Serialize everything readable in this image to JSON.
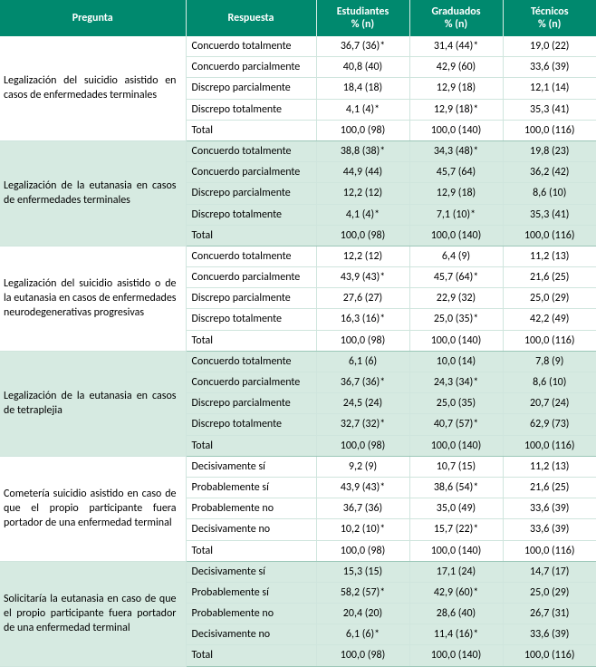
{
  "headers": {
    "pregunta": "Pregunta",
    "respuesta": "Respuesta",
    "estudiantes": "Estudiantes",
    "graduados": "Graduados",
    "tecnicos": "Técnicos",
    "pct_n": "% (n)"
  },
  "questions": [
    {
      "shaded": false,
      "pregunta": "Legalización del suicidio asistido en casos de enfermedades terminales",
      "rows": [
        {
          "respuesta": "Concuerdo totalmente",
          "estudiantes": "36,7 (36)*",
          "graduados": "31,4 (44)*",
          "tecnicos": "19,0 (22)"
        },
        {
          "respuesta": "Concuerdo parcialmente",
          "estudiantes": "40,8 (40)",
          "graduados": "42,9 (60)",
          "tecnicos": "33,6 (39)"
        },
        {
          "respuesta": "Discrepo parcialmente",
          "estudiantes": "18,4 (18)",
          "graduados": "12,9 (18)",
          "tecnicos": "12,1 (14)"
        },
        {
          "respuesta": "Discrepo totalmente",
          "estudiantes": "4,1 (4)*",
          "graduados": "12,9 (18)*",
          "tecnicos": "35,3 (41)"
        },
        {
          "respuesta": "Total",
          "estudiantes": "100,0 (98)",
          "graduados": "100,0 (140)",
          "tecnicos": "100,0 (116)"
        }
      ]
    },
    {
      "shaded": true,
      "pregunta": "Legalización de la eutanasia en casos de enfermedades terminales",
      "rows": [
        {
          "respuesta": "Concuerdo totalmente",
          "estudiantes": "38,8 (38)*",
          "graduados": "34,3 (48)*",
          "tecnicos": "19,8 (23)"
        },
        {
          "respuesta": "Concuerdo parcialmente",
          "estudiantes": "44,9 (44)",
          "graduados": "45,7 (64)",
          "tecnicos": "36,2 (42)"
        },
        {
          "respuesta": "Discrepo parcialmente",
          "estudiantes": "12,2 (12)",
          "graduados": "12,9 (18)",
          "tecnicos": "8,6 (10)"
        },
        {
          "respuesta": "Discrepo totalmente",
          "estudiantes": "4,1 (4)*",
          "graduados": "7,1 (10)*",
          "tecnicos": "35,3 (41)"
        },
        {
          "respuesta": "Total",
          "estudiantes": "100,0 (98)",
          "graduados": "100,0 (140)",
          "tecnicos": "100,0 (116)"
        }
      ]
    },
    {
      "shaded": false,
      "pregunta": "Legalización del suicidio asistido o de la eutanasia en casos de enfermedades neurodegenerativas progresivas",
      "rows": [
        {
          "respuesta": "Concuerdo totalmente",
          "estudiantes": "12,2 (12)",
          "graduados": "6,4 (9)",
          "tecnicos": "11,2 (13)"
        },
        {
          "respuesta": "Concuerdo parcialmente",
          "estudiantes": "43,9 (43)*",
          "graduados": "45,7 (64)*",
          "tecnicos": "21,6 (25)"
        },
        {
          "respuesta": "Discrepo parcialmente",
          "estudiantes": "27,6 (27)",
          "graduados": "22,9 (32)",
          "tecnicos": "25,0 (29)"
        },
        {
          "respuesta": "Discrepo totalmente",
          "estudiantes": "16,3 (16)*",
          "graduados": "25,0 (35)*",
          "tecnicos": "42,2 (49)"
        },
        {
          "respuesta": "Total",
          "estudiantes": "100,0 (98)",
          "graduados": "100,0 (140)",
          "tecnicos": "100,0 (116)"
        }
      ]
    },
    {
      "shaded": true,
      "pregunta": "Legalización de la eutanasia en casos de tetraplejia",
      "rows": [
        {
          "respuesta": "Concuerdo totalmente",
          "estudiantes": "6,1 (6)",
          "graduados": "10,0 (14)",
          "tecnicos": "7,8 (9)"
        },
        {
          "respuesta": "Concuerdo parcialmente",
          "estudiantes": "36,7 (36)*",
          "graduados": "24,3 (34)*",
          "tecnicos": "8,6 (10)"
        },
        {
          "respuesta": "Discrepo parcialmente",
          "estudiantes": "24,5 (24)",
          "graduados": "25,0 (35)",
          "tecnicos": "20,7 (24)"
        },
        {
          "respuesta": "Discrepo totalmente",
          "estudiantes": "32,7 (32)*",
          "graduados": "40,7 (57)*",
          "tecnicos": "62,9 (73)"
        },
        {
          "respuesta": "Total",
          "estudiantes": "100,0 (98)",
          "graduados": "100,0 (140)",
          "tecnicos": "100,0 (116)"
        }
      ]
    },
    {
      "shaded": false,
      "pregunta": "Cometería suicidio asistido en caso de que el propio participante fuera portador de una enfermedad terminal",
      "rows": [
        {
          "respuesta": "Decisivamente sí",
          "estudiantes": "9,2 (9)",
          "graduados": "10,7 (15)",
          "tecnicos": "11,2 (13)"
        },
        {
          "respuesta": "Probablemente sí",
          "estudiantes": "43,9 (43)*",
          "graduados": "38,6 (54)*",
          "tecnicos": "21,6 (25)"
        },
        {
          "respuesta": "Probablemente no",
          "estudiantes": "36,7 (36)",
          "graduados": "35,0 (49)",
          "tecnicos": "33,6 (39)"
        },
        {
          "respuesta": "Decisivamente no",
          "estudiantes": "10,2 (10)*",
          "graduados": "15,7 (22)*",
          "tecnicos": "33,6 (39)"
        },
        {
          "respuesta": "Total",
          "estudiantes": "100,0 (98)",
          "graduados": "100,0 (140)",
          "tecnicos": "100,0 (116)"
        }
      ]
    },
    {
      "shaded": true,
      "pregunta": "Solicitaría la eutanasia en caso de que el propio participante fuera portador de una enfermedad terminal",
      "rows": [
        {
          "respuesta": "Decisivamente sí",
          "estudiantes": "15,3 (15)",
          "graduados": "17,1 (24)",
          "tecnicos": "14,7 (17)"
        },
        {
          "respuesta": "Probablemente sí",
          "estudiantes": "58,2 (57)*",
          "graduados": "42,9 (60)*",
          "tecnicos": "25,0 (29)"
        },
        {
          "respuesta": "Probablemente no",
          "estudiantes": "20,4 (20)",
          "graduados": "28,6 (40)",
          "tecnicos": "26,7 (31)"
        },
        {
          "respuesta": "Decisivamente no",
          "estudiantes": "6,1 (6)*",
          "graduados": "11,4 (16)*",
          "tecnicos": "33,6 (39)"
        },
        {
          "respuesta": "Total",
          "estudiantes": "100,0 (98)",
          "graduados": "100,0 (140)",
          "tecnicos": "100,0 (116)"
        }
      ]
    }
  ]
}
